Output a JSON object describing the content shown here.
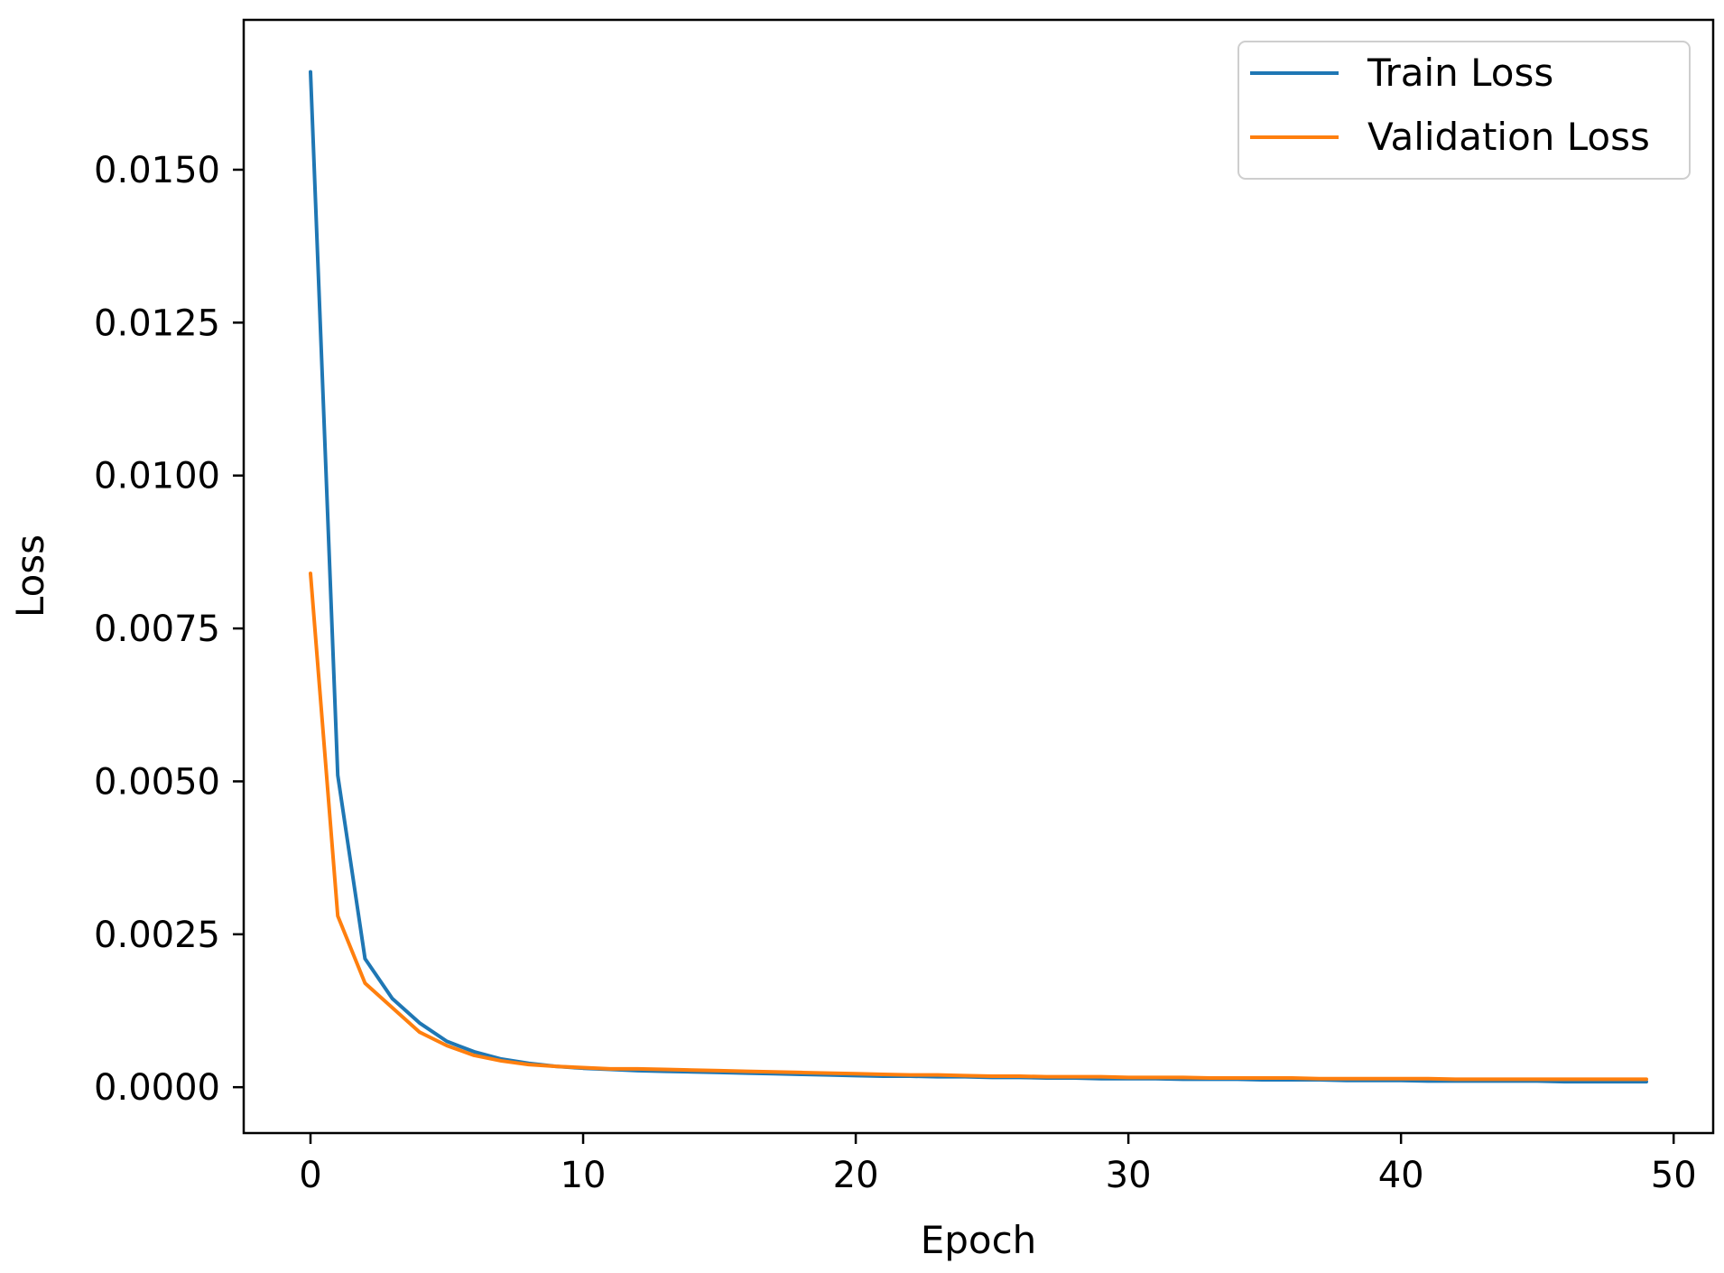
{
  "chart_data": {
    "type": "line",
    "title": "",
    "xlabel": "Epoch",
    "ylabel": "Loss",
    "xlim": [
      -2.45,
      51.45
    ],
    "ylim": [
      -0.00075,
      0.01745
    ],
    "xticks": [
      0,
      10,
      20,
      30,
      40,
      50
    ],
    "xtick_labels": [
      "0",
      "10",
      "20",
      "30",
      "40",
      "50"
    ],
    "yticks": [
      0.0,
      0.0025,
      0.005,
      0.0075,
      0.01,
      0.0125,
      0.015
    ],
    "ytick_labels": [
      "0.0000",
      "0.0025",
      "0.0050",
      "0.0075",
      "0.0100",
      "0.0125",
      "0.0150"
    ],
    "grid": false,
    "legend_position": "top-right",
    "x": [
      0,
      1,
      2,
      3,
      4,
      5,
      6,
      7,
      8,
      9,
      10,
      11,
      12,
      13,
      14,
      15,
      16,
      17,
      18,
      19,
      20,
      21,
      22,
      23,
      24,
      25,
      26,
      27,
      28,
      29,
      30,
      31,
      32,
      33,
      34,
      35,
      36,
      37,
      38,
      39,
      40,
      41,
      42,
      43,
      44,
      45,
      46,
      47,
      48,
      49
    ],
    "series": [
      {
        "name": "Train Loss",
        "color": "#1f77b4",
        "values": [
          0.0166,
          0.0051,
          0.0021,
          0.00145,
          0.00105,
          0.00075,
          0.00058,
          0.00046,
          0.00039,
          0.00034,
          0.00031,
          0.00029,
          0.00027,
          0.00026,
          0.00025,
          0.00024,
          0.00023,
          0.00022,
          0.00021,
          0.0002,
          0.00019,
          0.00018,
          0.00018,
          0.00017,
          0.00017,
          0.00016,
          0.00016,
          0.00015,
          0.00015,
          0.00014,
          0.00014,
          0.00014,
          0.00013,
          0.00013,
          0.00013,
          0.00012,
          0.00012,
          0.00012,
          0.00011,
          0.00011,
          0.00011,
          0.0001,
          0.0001,
          0.0001,
          0.0001,
          0.0001,
          9e-05,
          9e-05,
          9e-05,
          9e-05
        ]
      },
      {
        "name": "Validation Loss",
        "color": "#ff7f0e",
        "values": [
          0.0084,
          0.0028,
          0.0017,
          0.0013,
          0.0009,
          0.00068,
          0.00052,
          0.00043,
          0.00037,
          0.00034,
          0.00032,
          0.0003,
          0.0003,
          0.00029,
          0.00028,
          0.00027,
          0.00026,
          0.00025,
          0.00024,
          0.00023,
          0.00022,
          0.00021,
          0.0002,
          0.0002,
          0.00019,
          0.00018,
          0.00018,
          0.00017,
          0.00017,
          0.00017,
          0.00016,
          0.00016,
          0.00016,
          0.00015,
          0.00015,
          0.00015,
          0.00015,
          0.00014,
          0.00014,
          0.00014,
          0.00014,
          0.00014,
          0.00013,
          0.00013,
          0.00013,
          0.00013,
          0.00013,
          0.00013,
          0.00013,
          0.00013
        ]
      }
    ]
  }
}
